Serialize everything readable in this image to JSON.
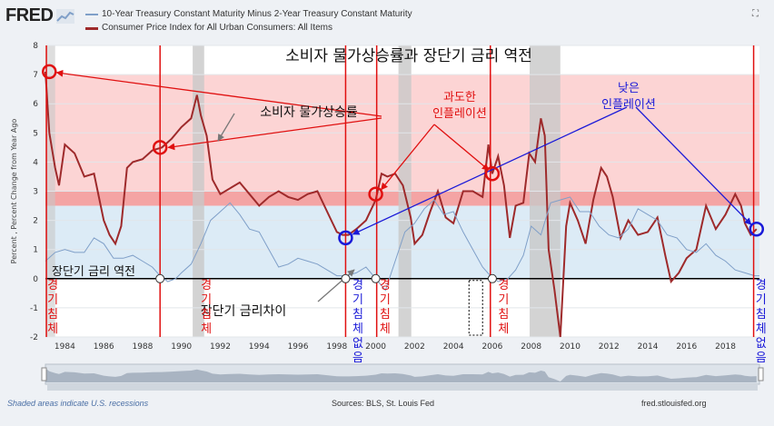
{
  "app": {
    "logo": "FRED"
  },
  "legend": [
    {
      "name": "10-Year Treasury Constant Maturity Minus 2-Year Treasury Constant Maturity",
      "color": "#7f9fc8"
    },
    {
      "name": "Consumer Price Index for All Urban Consumers: All Items",
      "color": "#9e2a2b"
    }
  ],
  "footer": {
    "left": "Shaded areas indicate U.S. recessions",
    "middle": "Sources: BLS, St. Louis Fed",
    "right": "fred.stlouisfed.org"
  },
  "chart_data": {
    "type": "line",
    "ylabel": "Percent , Percent Change from Year Ago",
    "ylim": [
      -2,
      8
    ],
    "xlim": [
      1983.0,
      2019.75
    ],
    "yticks": [
      "8",
      "7",
      "6",
      "5",
      "4",
      "3",
      "2",
      "1",
      "0",
      "-1",
      "-2"
    ],
    "xticks": [
      "1984",
      "1986",
      "1988",
      "1990",
      "1992",
      "1994",
      "1996",
      "1998",
      "2000",
      "2002",
      "2004",
      "2006",
      "2008",
      "2010",
      "2012",
      "2014",
      "2016",
      "2018"
    ],
    "recessions": [
      [
        1990.58,
        1991.17
      ],
      [
        2001.17,
        2001.83
      ],
      [
        2007.92,
        2009.5
      ]
    ],
    "bands": {
      "high_inflation": [
        3,
        7
      ],
      "target_zone": [
        2.5,
        3
      ],
      "low_zone": [
        0,
        2.5
      ]
    },
    "series": [
      {
        "name": "Consumer Price Index for All Urban Consumers: All Items",
        "color": "#9e2a2b",
        "x": [
          1983.0,
          1983.2,
          1983.5,
          1983.7,
          1984.0,
          1984.5,
          1985.0,
          1985.5,
          1986.0,
          1986.3,
          1986.6,
          1986.9,
          1987.2,
          1987.5,
          1988.0,
          1988.5,
          1989.0,
          1989.5,
          1990.0,
          1990.5,
          1990.8,
          1991.0,
          1991.3,
          1991.6,
          1992.0,
          1992.5,
          1993.0,
          1993.5,
          1994.0,
          1994.5,
          1995.0,
          1995.5,
          1996.0,
          1996.5,
          1997.0,
          1997.5,
          1998.0,
          1998.3,
          1998.6,
          1999.0,
          1999.5,
          2000.0,
          2000.3,
          2000.6,
          2001.0,
          2001.4,
          2001.8,
          2002.0,
          2002.4,
          2002.8,
          2003.2,
          2003.6,
          2004.0,
          2004.5,
          2005.0,
          2005.5,
          2005.8,
          2006.0,
          2006.3,
          2006.6,
          2006.9,
          2007.2,
          2007.6,
          2007.9,
          2008.2,
          2008.5,
          2008.7,
          2008.9,
          2009.2,
          2009.5,
          2009.8,
          2010.0,
          2010.4,
          2010.8,
          2011.2,
          2011.6,
          2011.9,
          2012.2,
          2012.6,
          2013.0,
          2013.5,
          2014.0,
          2014.5,
          2014.9,
          2015.2,
          2015.6,
          2016.0,
          2016.5,
          2017.0,
          2017.5,
          2018.0,
          2018.5,
          2018.8,
          2019.0,
          2019.3,
          2019.6
        ],
        "values": [
          7.1,
          5.0,
          3.8,
          3.2,
          4.6,
          4.3,
          3.5,
          3.6,
          2.0,
          1.5,
          1.2,
          1.8,
          3.8,
          4.0,
          4.1,
          4.4,
          4.5,
          4.8,
          5.2,
          5.5,
          6.3,
          5.6,
          4.9,
          3.4,
          2.9,
          3.1,
          3.3,
          2.9,
          2.5,
          2.8,
          3.0,
          2.8,
          2.7,
          2.9,
          3.0,
          2.3,
          1.6,
          1.5,
          1.5,
          1.7,
          2.0,
          2.7,
          3.6,
          3.5,
          3.6,
          3.2,
          2.1,
          1.2,
          1.5,
          2.3,
          3.0,
          2.1,
          1.9,
          3.0,
          3.0,
          2.8,
          4.6,
          3.6,
          4.2,
          3.2,
          1.4,
          2.5,
          2.6,
          4.3,
          4.0,
          5.5,
          4.9,
          1.0,
          -0.4,
          -2.0,
          1.8,
          2.6,
          2.0,
          1.2,
          2.7,
          3.8,
          3.5,
          2.8,
          1.4,
          2.0,
          1.5,
          1.6,
          2.1,
          0.8,
          -0.1,
          0.2,
          0.7,
          1.0,
          2.5,
          1.7,
          2.2,
          2.9,
          2.5,
          1.9,
          1.5,
          1.7
        ]
      },
      {
        "name": "10-Year Treasury Constant Maturity Minus 2-Year Treasury Constant Maturity",
        "color": "#7f9fc8",
        "x": [
          1983.0,
          1983.5,
          1984.0,
          1984.5,
          1985.0,
          1985.5,
          1986.0,
          1986.5,
          1987.0,
          1987.5,
          1988.0,
          1988.5,
          1988.9,
          1989.3,
          1989.7,
          1990.0,
          1990.5,
          1991.0,
          1991.5,
          1992.0,
          1992.5,
          1993.0,
          1993.5,
          1994.0,
          1994.5,
          1995.0,
          1995.5,
          1996.0,
          1996.5,
          1997.0,
          1997.5,
          1998.0,
          1998.5,
          1999.0,
          1999.5,
          2000.0,
          2000.5,
          2001.0,
          2001.5,
          2002.0,
          2002.5,
          2003.0,
          2003.5,
          2004.0,
          2004.5,
          2005.0,
          2005.5,
          2005.9,
          2006.3,
          2006.8,
          2007.2,
          2007.6,
          2008.0,
          2008.5,
          2009.0,
          2009.5,
          2010.0,
          2010.5,
          2011.0,
          2011.5,
          2012.0,
          2012.5,
          2013.0,
          2013.5,
          2014.0,
          2014.5,
          2015.0,
          2015.5,
          2016.0,
          2016.5,
          2017.0,
          2017.5,
          2018.0,
          2018.5,
          2019.0,
          2019.5,
          2019.75
        ],
        "values": [
          0.6,
          0.9,
          1.0,
          0.9,
          0.9,
          1.4,
          1.2,
          0.7,
          0.7,
          0.8,
          0.6,
          0.4,
          0.1,
          -0.1,
          0.0,
          0.2,
          0.5,
          1.2,
          2.0,
          2.3,
          2.6,
          2.2,
          1.7,
          1.6,
          1.0,
          0.4,
          0.5,
          0.7,
          0.6,
          0.5,
          0.3,
          0.1,
          0.1,
          0.2,
          0.4,
          0.0,
          -0.4,
          0.6,
          1.6,
          1.9,
          2.4,
          2.7,
          2.2,
          2.3,
          1.6,
          1.0,
          0.4,
          0.1,
          -0.1,
          0.0,
          0.3,
          0.8,
          1.8,
          1.5,
          2.6,
          2.7,
          2.8,
          2.3,
          2.3,
          1.8,
          1.5,
          1.4,
          1.7,
          2.4,
          2.2,
          2.0,
          1.5,
          1.4,
          1.0,
          0.9,
          1.2,
          0.8,
          0.6,
          0.3,
          0.2,
          0.1,
          0.1
        ]
      }
    ],
    "annotations": {
      "title": "소비자 물가상승률과 장단기 금리 역전",
      "cpi_label": "소비자 물가상승률",
      "high_label_1": "과도한",
      "high_label_2": "인플레이션",
      "low_label_1": "낮은",
      "low_label_2": "인플레이션",
      "inversion_label": "장단기 금리 역전",
      "spread_label": "장단기 금리차이",
      "recession_labels": [
        {
          "text": "경기침체",
          "x": 1983.1
        },
        {
          "text": "경기침체",
          "x": 1991.0
        },
        {
          "text": "경기침체없음",
          "x": 1998.8
        },
        {
          "text": "경기침체",
          "x": 2000.2
        },
        {
          "text": "경기침체",
          "x": 2006.3
        },
        {
          "text": "경기침체없음",
          "x": 2019.55
        }
      ],
      "red_lines": [
        1983.05,
        1988.9,
        1998.45,
        2000.05,
        2005.9,
        2019.45
      ],
      "red_circles": [
        [
          1983.2,
          7.1
        ],
        [
          1988.9,
          4.5
        ],
        [
          2000.0,
          2.9
        ],
        [
          2006.0,
          3.6
        ]
      ],
      "blue_circles": [
        [
          1998.45,
          1.4
        ],
        [
          2019.6,
          1.7
        ]
      ],
      "black_circles": [
        [
          1988.9,
          0.0
        ],
        [
          1998.45,
          0.0
        ],
        [
          2000.0,
          0.0
        ],
        [
          2006.0,
          0.0
        ]
      ],
      "dashed_box": [
        2004.8,
        2005.5
      ]
    }
  }
}
